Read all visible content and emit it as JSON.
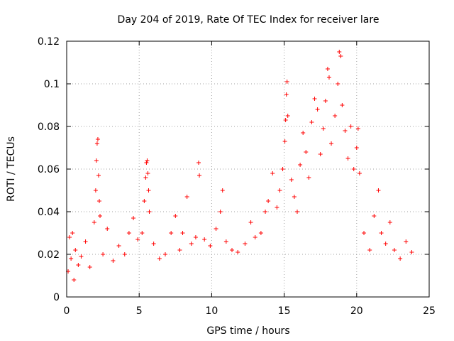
{
  "chart_data": {
    "type": "scatter",
    "title": "Day 204 of 2019, Rate Of TEC Index for receiver lare",
    "xlabel": "GPS time / hours",
    "ylabel": "ROTI / TECUs",
    "xlim": [
      0,
      25
    ],
    "ylim": [
      0,
      0.12
    ],
    "xticks": [
      0,
      5,
      10,
      15,
      20,
      25
    ],
    "yticks": [
      0,
      0.02,
      0.04,
      0.06,
      0.08,
      0.1,
      0.12
    ],
    "xtick_labels": [
      "0",
      "5",
      "10",
      "15",
      "20",
      "25"
    ],
    "ytick_labels": [
      "0",
      "0.02",
      "0.04",
      "0.06",
      "0.08",
      "0.1",
      "0.12"
    ],
    "grid": true,
    "marker": "plus",
    "color": "#ff0000",
    "series": [
      {
        "points": [
          [
            0.1,
            0.012
          ],
          [
            0.2,
            0.028
          ],
          [
            0.3,
            0.018
          ],
          [
            0.4,
            0.03
          ],
          [
            0.5,
            0.008
          ],
          [
            0.6,
            0.022
          ],
          [
            0.8,
            0.015
          ],
          [
            1.0,
            0.019
          ],
          [
            1.3,
            0.026
          ],
          [
            1.6,
            0.014
          ],
          [
            1.9,
            0.035
          ],
          [
            2.0,
            0.05
          ],
          [
            2.05,
            0.064
          ],
          [
            2.1,
            0.072
          ],
          [
            2.15,
            0.074
          ],
          [
            2.2,
            0.057
          ],
          [
            2.25,
            0.045
          ],
          [
            2.3,
            0.038
          ],
          [
            2.5,
            0.02
          ],
          [
            2.8,
            0.032
          ],
          [
            3.2,
            0.017
          ],
          [
            3.6,
            0.024
          ],
          [
            4.0,
            0.02
          ],
          [
            4.3,
            0.03
          ],
          [
            4.6,
            0.037
          ],
          [
            4.9,
            0.027
          ],
          [
            5.2,
            0.03
          ],
          [
            5.35,
            0.045
          ],
          [
            5.45,
            0.056
          ],
          [
            5.5,
            0.063
          ],
          [
            5.55,
            0.064
          ],
          [
            5.6,
            0.058
          ],
          [
            5.65,
            0.05
          ],
          [
            5.7,
            0.04
          ],
          [
            6.0,
            0.025
          ],
          [
            6.4,
            0.018
          ],
          [
            6.8,
            0.02
          ],
          [
            7.2,
            0.03
          ],
          [
            7.5,
            0.038
          ],
          [
            7.8,
            0.022
          ],
          [
            8.0,
            0.03
          ],
          [
            8.3,
            0.047
          ],
          [
            8.6,
            0.025
          ],
          [
            8.9,
            0.028
          ],
          [
            9.1,
            0.063
          ],
          [
            9.15,
            0.057
          ],
          [
            9.5,
            0.027
          ],
          [
            9.9,
            0.024
          ],
          [
            10.3,
            0.032
          ],
          [
            10.6,
            0.04
          ],
          [
            10.75,
            0.05
          ],
          [
            11.0,
            0.026
          ],
          [
            11.4,
            0.022
          ],
          [
            11.8,
            0.021
          ],
          [
            12.3,
            0.025
          ],
          [
            12.7,
            0.035
          ],
          [
            13.0,
            0.028
          ],
          [
            13.4,
            0.03
          ],
          [
            13.7,
            0.04
          ],
          [
            13.9,
            0.045
          ],
          [
            14.2,
            0.058
          ],
          [
            14.5,
            0.042
          ],
          [
            14.7,
            0.05
          ],
          [
            14.9,
            0.06
          ],
          [
            15.05,
            0.073
          ],
          [
            15.1,
            0.083
          ],
          [
            15.15,
            0.095
          ],
          [
            15.2,
            0.101
          ],
          [
            15.25,
            0.085
          ],
          [
            15.5,
            0.055
          ],
          [
            15.7,
            0.047
          ],
          [
            15.9,
            0.04
          ],
          [
            16.1,
            0.062
          ],
          [
            16.3,
            0.077
          ],
          [
            16.5,
            0.068
          ],
          [
            16.7,
            0.056
          ],
          [
            16.9,
            0.082
          ],
          [
            17.1,
            0.093
          ],
          [
            17.3,
            0.088
          ],
          [
            17.5,
            0.067
          ],
          [
            17.7,
            0.079
          ],
          [
            17.85,
            0.092
          ],
          [
            18.0,
            0.107
          ],
          [
            18.1,
            0.103
          ],
          [
            18.25,
            0.072
          ],
          [
            18.5,
            0.085
          ],
          [
            18.7,
            0.1
          ],
          [
            18.8,
            0.115
          ],
          [
            18.9,
            0.113
          ],
          [
            19.0,
            0.09
          ],
          [
            19.2,
            0.078
          ],
          [
            19.4,
            0.065
          ],
          [
            19.6,
            0.08
          ],
          [
            19.8,
            0.06
          ],
          [
            20.0,
            0.07
          ],
          [
            20.1,
            0.079
          ],
          [
            20.2,
            0.058
          ],
          [
            20.5,
            0.03
          ],
          [
            20.9,
            0.022
          ],
          [
            21.2,
            0.038
          ],
          [
            21.5,
            0.05
          ],
          [
            21.7,
            0.03
          ],
          [
            22.0,
            0.025
          ],
          [
            22.3,
            0.035
          ],
          [
            22.6,
            0.022
          ],
          [
            23.0,
            0.018
          ],
          [
            23.4,
            0.026
          ],
          [
            23.8,
            0.021
          ]
        ]
      }
    ]
  }
}
